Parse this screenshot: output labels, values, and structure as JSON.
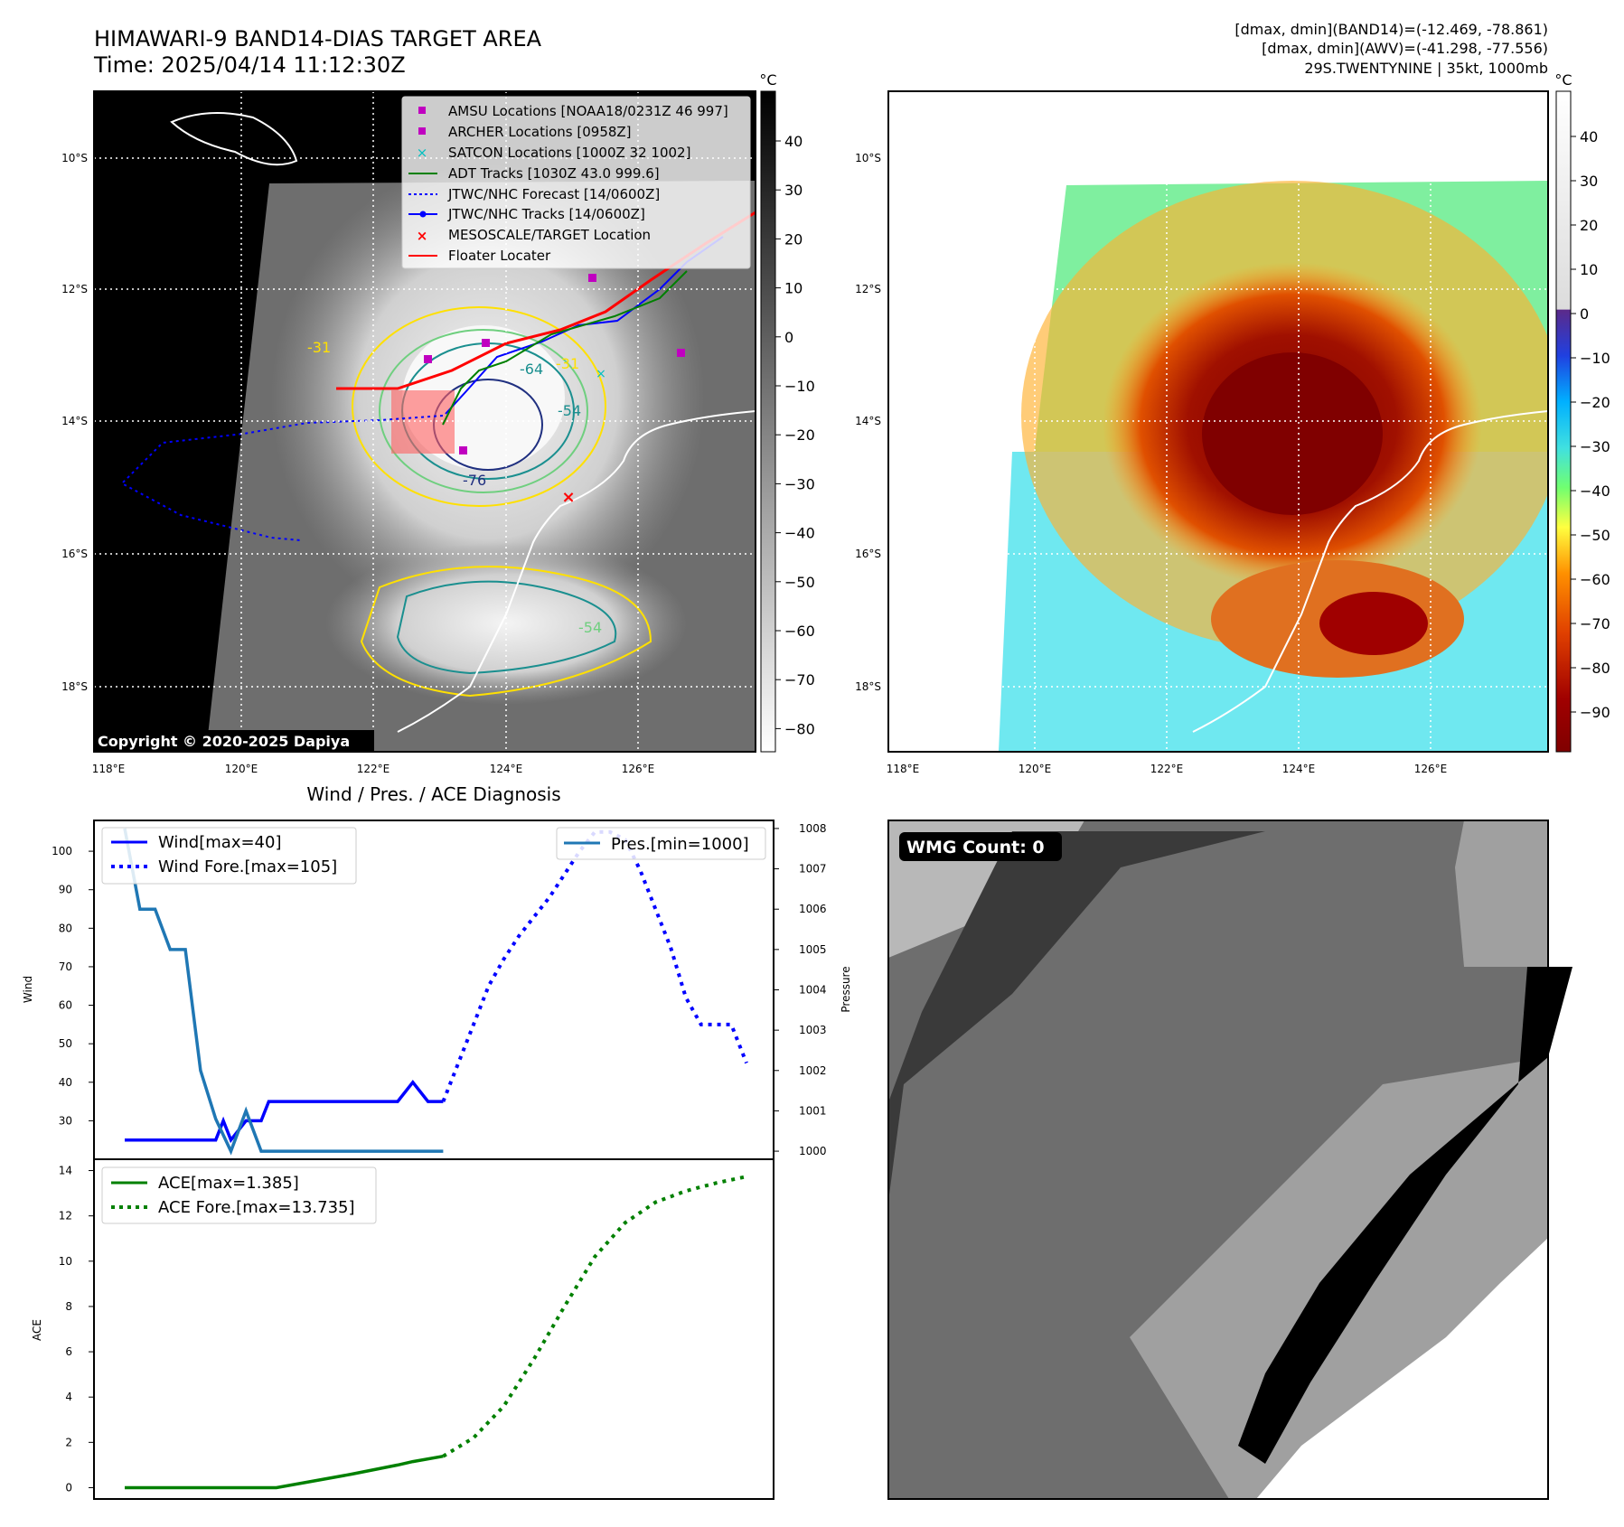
{
  "header": {
    "title": "HIMAWARI-9 BAND14-DIAS TARGET AREA",
    "time": "Time: 2025/04/14 11:12:30Z",
    "dmax_band14": "[dmax, dmin](BAND14)=(-12.469, -78.861)",
    "dmax_awv": "[dmax, dmin](AWV)=(-41.298, -77.556)",
    "storm": "29S.TWENTYNINE | 35kt, 1000mb"
  },
  "copyright": "Copyright © 2020-2025 Dapiya",
  "units": {
    "celsius": "°C"
  },
  "map": {
    "lat_labels": [
      "10°S",
      "12°S",
      "14°S",
      "16°S",
      "18°S"
    ],
    "lon_labels": [
      "118°E",
      "120°E",
      "122°E",
      "124°E",
      "126°E"
    ],
    "legend": [
      "AMSU Locations [NOAA18/0231Z 46 997]",
      "ARCHER Locations [0958Z]",
      "SATCON Locations [1000Z 32 1002]",
      "ADT Tracks [1030Z 43.0 999.6]",
      "JTWC/NHC Forecast [14/0600Z]",
      "JTWC/NHC Tracks [14/0600Z]",
      "MESOSCALE/TARGET Location",
      "Floater Locater"
    ],
    "contour_labels": [
      "-64",
      "-76",
      "-54",
      "-54",
      "-31",
      "-31"
    ],
    "colors": {
      "amsu": "#c000c0",
      "archer": "#c000c0",
      "satcon": "#00c0c0",
      "adt": "#008000",
      "jtwc": "#0000ff",
      "target": "#ff0000",
      "floater": "#ff0000"
    }
  },
  "colorbar_left": {
    "ticks": [
      "40",
      "30",
      "20",
      "10",
      "0",
      "−10",
      "−20",
      "−30",
      "−40",
      "−50",
      "−60",
      "−70",
      "−80"
    ]
  },
  "colorbar_right": {
    "ticks": [
      "40",
      "30",
      "20",
      "10",
      "0",
      "−10",
      "−20",
      "−30",
      "−40",
      "−50",
      "−60",
      "−70",
      "−80",
      "−90"
    ]
  },
  "chart_data": [
    {
      "type": "line",
      "title": "Wind / Pres. / ACE Diagnosis",
      "ylabel": "Wind",
      "ylabel_right": "Pressure",
      "ylim": [
        20,
        108
      ],
      "ylim_right": [
        999.8,
        1008.2
      ],
      "yticks": [
        30,
        40,
        50,
        60,
        70,
        80,
        90,
        100
      ],
      "yticks_right": [
        1000,
        1001,
        1002,
        1003,
        1004,
        1005,
        1006,
        1007,
        1008
      ],
      "series": [
        {
          "name": "Wind[max=40]",
          "axis": "left",
          "style": "solid",
          "color": "#0000ff",
          "x": [
            0,
            1,
            2,
            3,
            4,
            5,
            6,
            6.5,
            7,
            8,
            9,
            9.5,
            10,
            12,
            14,
            16,
            18,
            19,
            20,
            21
          ],
          "y": [
            25,
            25,
            25,
            25,
            25,
            25,
            25,
            30,
            25,
            30,
            30,
            35,
            35,
            35,
            35,
            35,
            35,
            40,
            35,
            35
          ]
        },
        {
          "name": "Wind Fore.[max=105]",
          "axis": "left",
          "style": "dotted",
          "color": "#0000ff",
          "x": [
            21,
            22,
            23,
            24,
            25,
            26,
            27,
            28,
            29,
            30,
            31,
            32,
            33,
            34,
            35,
            36,
            37,
            38,
            39,
            40,
            41
          ],
          "y": [
            35,
            45,
            55,
            65,
            72,
            78,
            83,
            88,
            94,
            100,
            105,
            105,
            103,
            95,
            85,
            75,
            62,
            55,
            55,
            55,
            45
          ]
        },
        {
          "name": "Pres.[min=1000]",
          "axis": "right",
          "style": "solid",
          "color": "#1f77b4",
          "x": [
            0,
            1,
            2,
            3,
            4,
            5,
            6,
            7,
            8,
            9,
            10,
            12,
            14,
            16,
            18,
            20,
            21
          ],
          "y": [
            1008,
            1006,
            1006,
            1005,
            1005,
            1002,
            1000.8,
            1000,
            1001,
            1000,
            1000,
            1000,
            1000,
            1000,
            1000,
            1000,
            1000
          ]
        }
      ]
    },
    {
      "type": "line",
      "ylabel": "ACE",
      "ylim": [
        -0.5,
        14.5
      ],
      "yticks": [
        0,
        2,
        4,
        6,
        8,
        10,
        12,
        14
      ],
      "series": [
        {
          "name": "ACE[max=1.385]",
          "style": "solid",
          "color": "#008000",
          "x": [
            0,
            5,
            10,
            15,
            18,
            19,
            21
          ],
          "y": [
            0,
            0,
            0,
            0.6,
            1.0,
            1.15,
            1.385
          ]
        },
        {
          "name": "ACE Fore.[max=13.735]",
          "style": "dotted",
          "color": "#008000",
          "x": [
            21,
            23,
            25,
            27,
            29,
            31,
            33,
            35,
            37,
            39,
            41
          ],
          "y": [
            1.385,
            2.2,
            3.6,
            5.7,
            8.0,
            10.2,
            11.7,
            12.6,
            13.1,
            13.45,
            13.735
          ]
        }
      ]
    }
  ],
  "wmg": {
    "label": "WMG Count: 0"
  }
}
